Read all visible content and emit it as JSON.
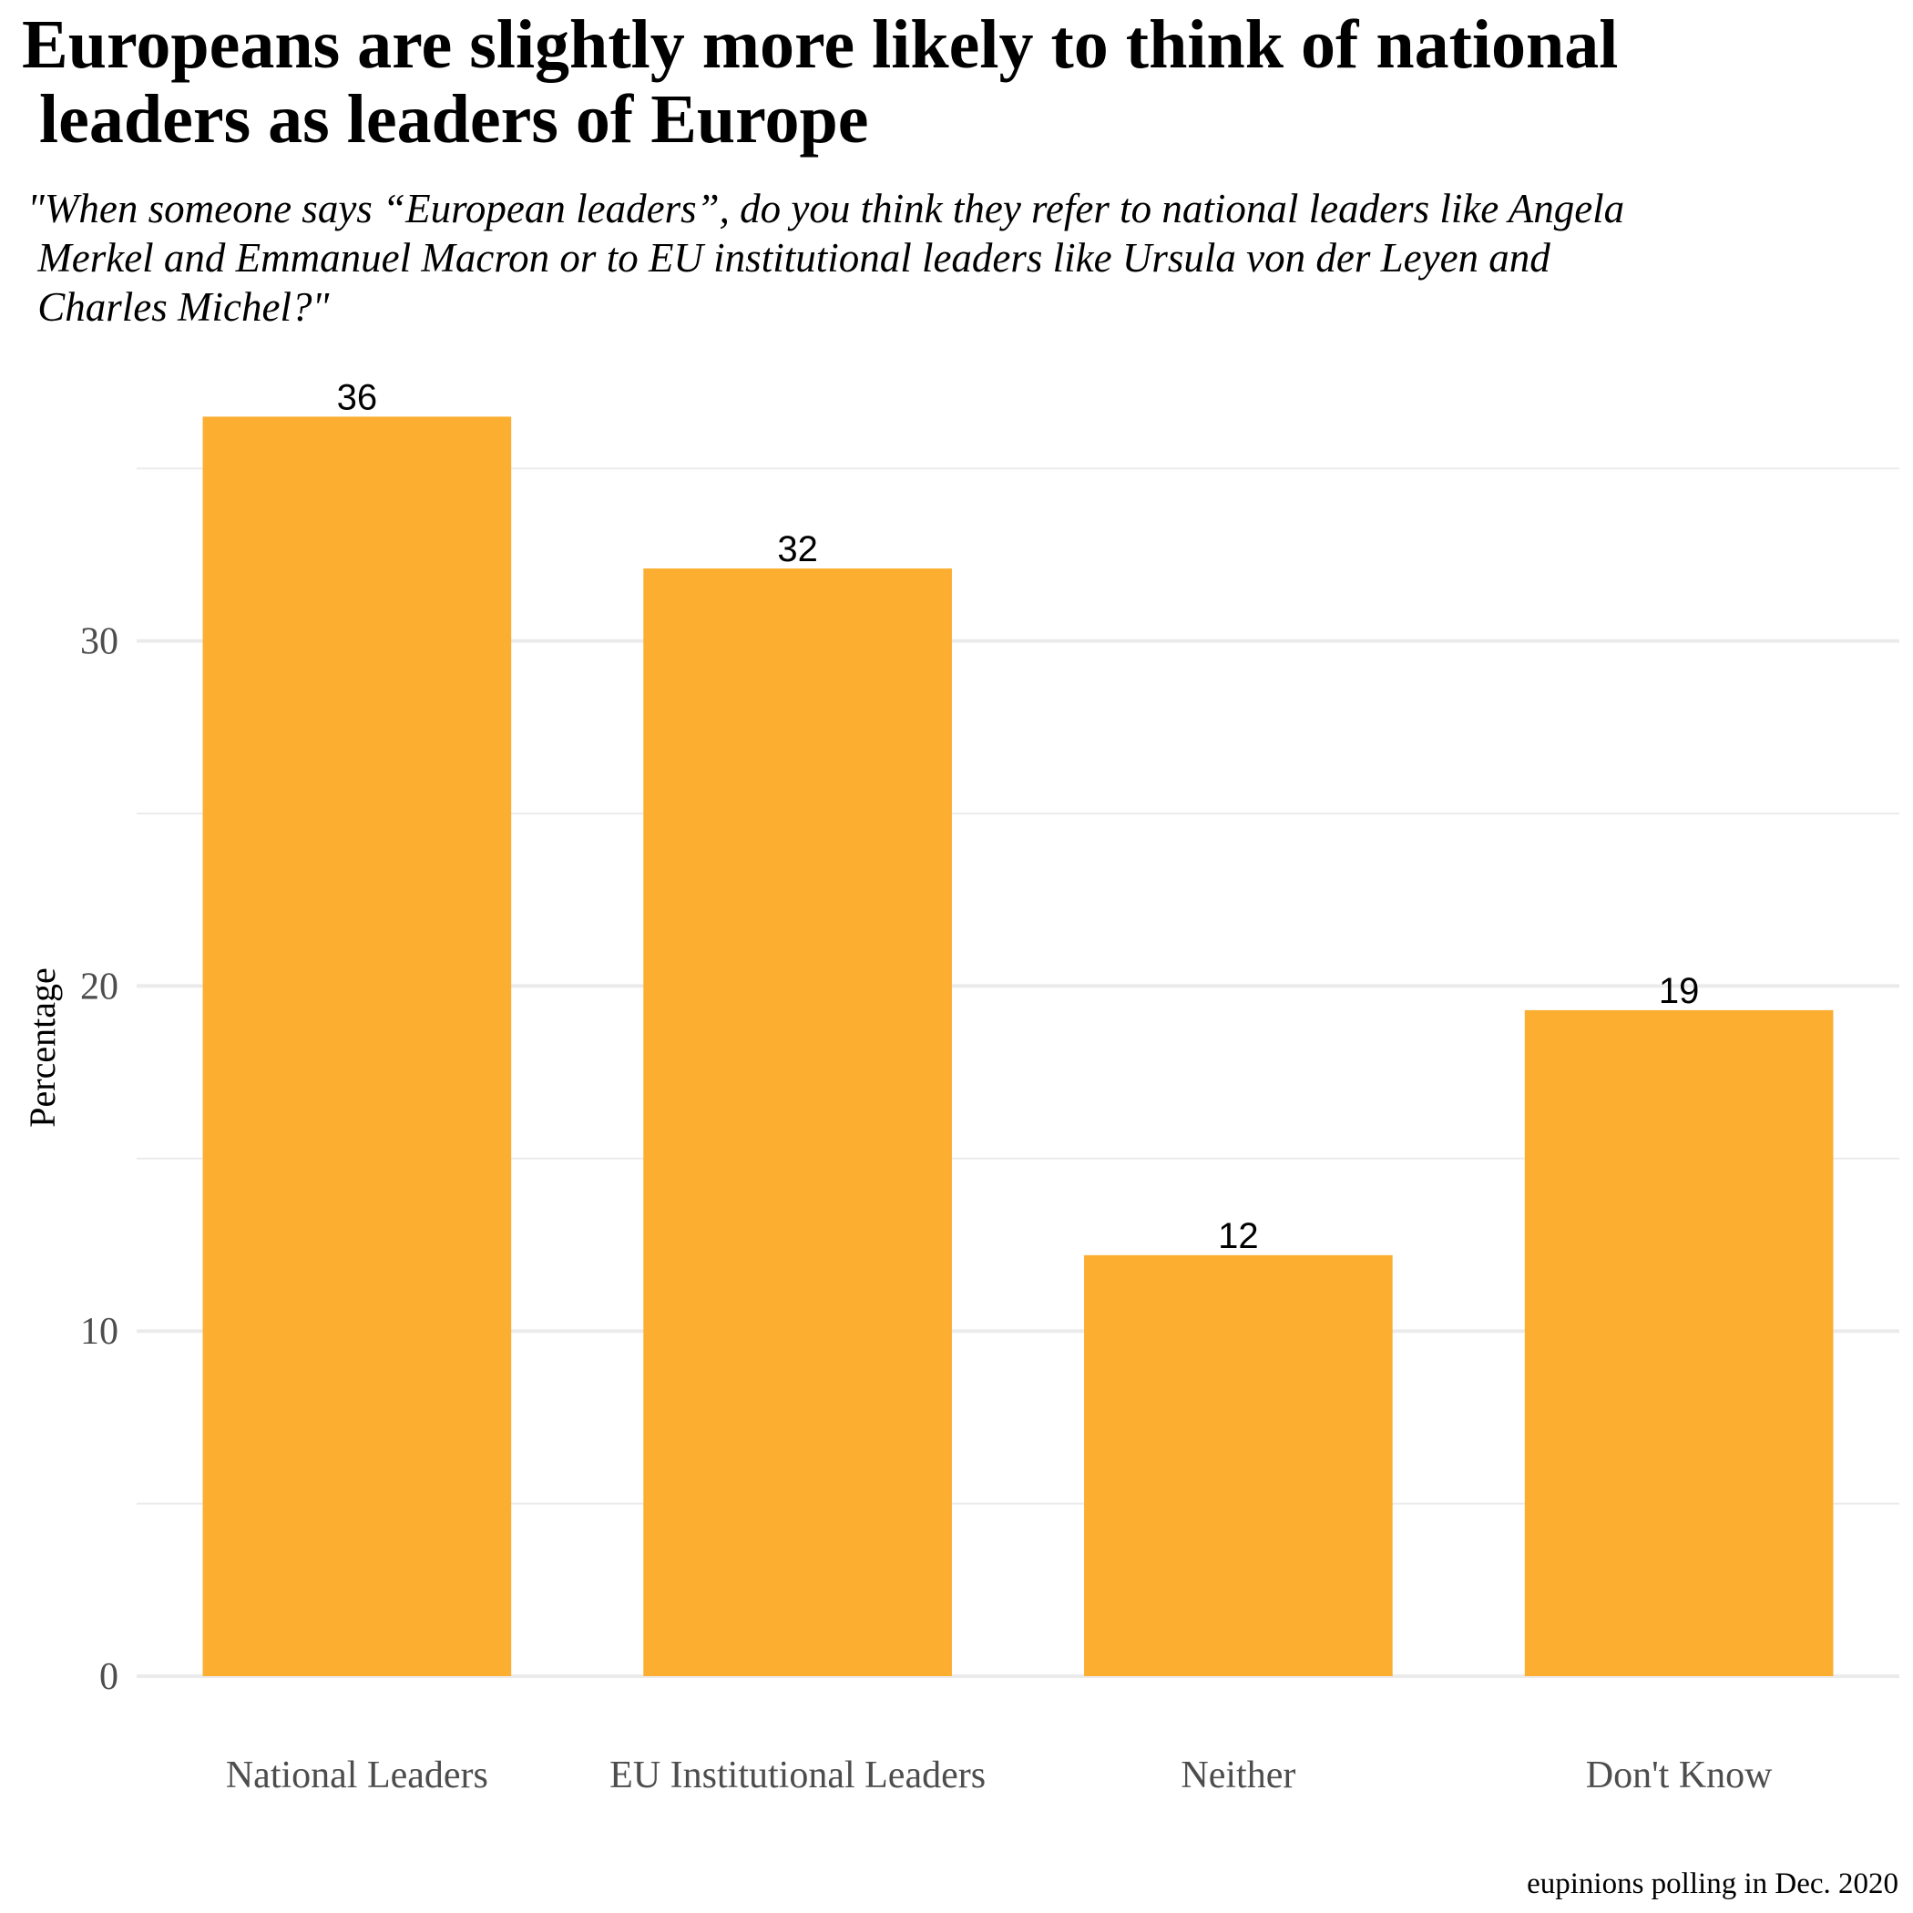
{
  "chart_data": {
    "type": "bar",
    "title": "Europeans are slightly more likely to think of national\n leaders as leaders of Europe",
    "subtitle": "\"When someone says “European leaders”, do you think they refer to national leaders like Angela\n Merkel and Emmanuel Macron or to EU institutional leaders like Ursula von der Leyen and\n Charles Michel?\"",
    "caption": "eupinions polling in Dec. 2020",
    "xlabel": "",
    "ylabel": "Percentage",
    "categories": [
      "National Leaders",
      "EU Institutional Leaders",
      "Neither",
      "Don't Know"
    ],
    "values": [
      36.5,
      32.1,
      12.2,
      19.3
    ],
    "data_labels": [
      "36",
      "32",
      "12",
      "19"
    ],
    "ylim": [
      0,
      36.5
    ],
    "yticks": [
      0,
      10,
      20,
      30
    ],
    "yticklabels": [
      "0",
      "10",
      "20",
      "30"
    ],
    "minor_gridlines": [
      5,
      15,
      25,
      35
    ],
    "grid": true,
    "legend": "none",
    "colors": {
      "bar": "#FBAE30",
      "grid": "#EBEBEB",
      "tick_text": "#4D4D4D",
      "text": "#000000"
    }
  }
}
